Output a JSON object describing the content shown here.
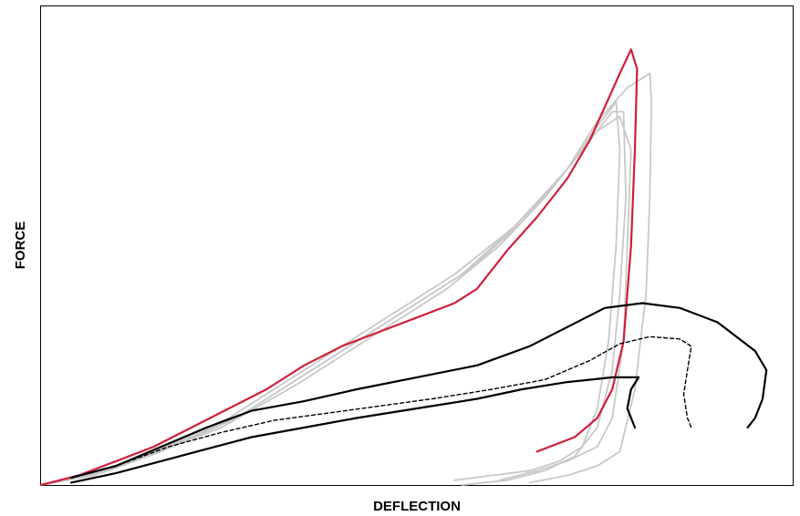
{
  "chart_data": {
    "type": "line",
    "xlabel": "DEFLECTION",
    "ylabel": "FORCE",
    "xlim": [
      0,
      100
    ],
    "ylim": [
      0,
      100
    ],
    "grid": false,
    "legend": "none",
    "ticks": "none",
    "series": [
      {
        "color": "#c8c8c8",
        "width": 1.8,
        "dash": false,
        "points": [
          [
            0,
            0
          ],
          [
            8,
            3
          ],
          [
            15,
            7
          ],
          [
            25,
            14
          ],
          [
            35,
            24
          ],
          [
            45,
            34
          ],
          [
            55,
            44
          ],
          [
            63,
            54
          ],
          [
            70,
            66
          ],
          [
            74,
            76
          ],
          [
            78,
            83
          ],
          [
            81,
            86
          ],
          [
            81.2,
            80
          ],
          [
            81,
            60
          ],
          [
            80.5,
            40
          ],
          [
            79,
            20
          ],
          [
            77,
            7
          ],
          [
            74,
            4
          ],
          [
            70,
            2
          ],
          [
            65,
            0.5
          ]
        ]
      },
      {
        "color": "#c8c8c8",
        "width": 1.8,
        "dash": false,
        "points": [
          [
            0,
            0
          ],
          [
            9,
            3
          ],
          [
            17,
            8
          ],
          [
            27,
            15
          ],
          [
            37,
            25
          ],
          [
            47,
            35
          ],
          [
            57,
            45
          ],
          [
            64,
            55
          ],
          [
            70,
            66
          ],
          [
            74,
            74
          ],
          [
            77,
            77
          ],
          [
            78.5,
            70
          ],
          [
            78,
            50
          ],
          [
            77.5,
            30
          ],
          [
            76,
            14
          ],
          [
            74,
            8
          ],
          [
            70,
            5
          ],
          [
            66,
            3
          ],
          [
            61,
            1
          ]
        ]
      },
      {
        "color": "#c8c8c8",
        "width": 1.8,
        "dash": false,
        "points": [
          [
            0,
            0
          ],
          [
            8,
            2.5
          ],
          [
            16,
            7
          ],
          [
            26,
            14
          ],
          [
            36,
            24
          ],
          [
            46,
            34
          ],
          [
            56,
            44
          ],
          [
            63,
            54
          ],
          [
            69,
            64
          ],
          [
            72,
            70
          ],
          [
            76,
            78
          ],
          [
            77.5,
            78
          ],
          [
            77.8,
            60
          ],
          [
            77,
            40
          ],
          [
            76,
            24
          ],
          [
            74,
            12
          ],
          [
            71,
            6
          ],
          [
            67,
            3
          ],
          [
            62,
            1
          ],
          [
            56,
            0
          ]
        ]
      },
      {
        "color": "#c8c8c8",
        "width": 1.8,
        "dash": false,
        "points": [
          [
            0,
            0
          ],
          [
            7,
            2
          ],
          [
            14,
            6
          ],
          [
            24,
            12
          ],
          [
            34,
            21
          ],
          [
            44,
            31
          ],
          [
            54,
            41
          ],
          [
            61,
            50
          ],
          [
            67,
            60
          ],
          [
            71,
            68
          ],
          [
            74,
            75
          ],
          [
            76.5,
            80
          ],
          [
            77,
            70
          ],
          [
            76.5,
            50
          ],
          [
            75.5,
            30
          ],
          [
            74,
            16
          ],
          [
            72,
            8
          ],
          [
            69,
            5
          ],
          [
            65,
            3
          ],
          [
            60,
            2
          ],
          [
            55,
            1
          ]
        ]
      },
      {
        "color": "#d01e3c",
        "width": 2.2,
        "dash": false,
        "points": [
          [
            0,
            0
          ],
          [
            5,
            2
          ],
          [
            10,
            5
          ],
          [
            15,
            8
          ],
          [
            20,
            12
          ],
          [
            25,
            16
          ],
          [
            30,
            20
          ],
          [
            35,
            25
          ],
          [
            40,
            29
          ],
          [
            45,
            32
          ],
          [
            50,
            35
          ],
          [
            55,
            38
          ],
          [
            58,
            41
          ],
          [
            62,
            49
          ],
          [
            66,
            56
          ],
          [
            70,
            64
          ],
          [
            73,
            72
          ],
          [
            75,
            79
          ],
          [
            77,
            86
          ],
          [
            78.5,
            91
          ],
          [
            79.3,
            87
          ],
          [
            79,
            70
          ],
          [
            78.5,
            50
          ],
          [
            77.5,
            30
          ],
          [
            76,
            20
          ],
          [
            74,
            14
          ],
          [
            71,
            10
          ],
          [
            66,
            7
          ]
        ]
      },
      {
        "color": "#000000",
        "width": 2.2,
        "dash": false,
        "points": [
          [
            4,
            1.5
          ],
          [
            10,
            4
          ],
          [
            16,
            8
          ],
          [
            22,
            12
          ],
          [
            28,
            15.5
          ],
          [
            35,
            17.5
          ],
          [
            42,
            20
          ],
          [
            50,
            22.5
          ],
          [
            58,
            25
          ],
          [
            65,
            29
          ],
          [
            70,
            33
          ],
          [
            75,
            37
          ],
          [
            80,
            38
          ],
          [
            85,
            37
          ],
          [
            90,
            34
          ],
          [
            95,
            28
          ],
          [
            96.5,
            24
          ],
          [
            96,
            18
          ],
          [
            95,
            14
          ],
          [
            94,
            12
          ]
        ]
      },
      {
        "color": "#000000",
        "width": 1.4,
        "dash": true,
        "points": [
          [
            4,
            1.5
          ],
          [
            10,
            4
          ],
          [
            17,
            8
          ],
          [
            24,
            11
          ],
          [
            31,
            13.5
          ],
          [
            38,
            15
          ],
          [
            45,
            16.5
          ],
          [
            52,
            18
          ],
          [
            60,
            20
          ],
          [
            67,
            22
          ],
          [
            73,
            26
          ],
          [
            77,
            29.5
          ],
          [
            81,
            31
          ],
          [
            85,
            30.5
          ],
          [
            86.5,
            29
          ],
          [
            86,
            24
          ],
          [
            85.5,
            19
          ],
          [
            86,
            14
          ],
          [
            86.5,
            12
          ]
        ]
      },
      {
        "color": "#000000",
        "width": 2.2,
        "dash": false,
        "points": [
          [
            4,
            0.5
          ],
          [
            10,
            2.5
          ],
          [
            16,
            5
          ],
          [
            22,
            7.5
          ],
          [
            28,
            10
          ],
          [
            35,
            12
          ],
          [
            42,
            14
          ],
          [
            50,
            16
          ],
          [
            58,
            18
          ],
          [
            64,
            20
          ],
          [
            70,
            21.5
          ],
          [
            76,
            22.5
          ],
          [
            79.5,
            22.5
          ],
          [
            78.5,
            20
          ],
          [
            78,
            16
          ],
          [
            79,
            12
          ]
        ]
      }
    ]
  }
}
